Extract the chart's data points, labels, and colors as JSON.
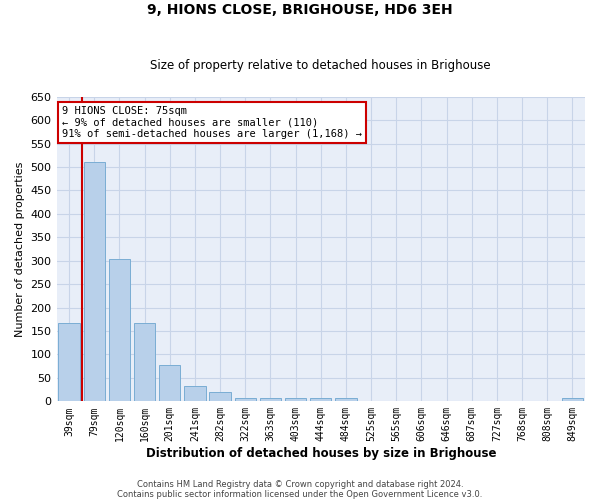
{
  "title": "9, HIONS CLOSE, BRIGHOUSE, HD6 3EH",
  "subtitle": "Size of property relative to detached houses in Brighouse",
  "xlabel": "Distribution of detached houses by size in Brighouse",
  "ylabel": "Number of detached properties",
  "categories": [
    "39sqm",
    "79sqm",
    "120sqm",
    "160sqm",
    "201sqm",
    "241sqm",
    "282sqm",
    "322sqm",
    "363sqm",
    "403sqm",
    "444sqm",
    "484sqm",
    "525sqm",
    "565sqm",
    "606sqm",
    "646sqm",
    "687sqm",
    "727sqm",
    "768sqm",
    "808sqm",
    "849sqm"
  ],
  "values": [
    168,
    510,
    303,
    168,
    78,
    32,
    20,
    8,
    8,
    8,
    8,
    8,
    0,
    0,
    0,
    0,
    0,
    0,
    0,
    0,
    8
  ],
  "bar_color": "#b8d0ea",
  "bar_edge_color": "#7aadd4",
  "vline_color": "#cc0000",
  "annotation_lines": [
    "9 HIONS CLOSE: 75sqm",
    "← 9% of detached houses are smaller (110)",
    "91% of semi-detached houses are larger (1,168) →"
  ],
  "annotation_box_color": "#cc0000",
  "annotation_box_fill": "#ffffff",
  "ylim": [
    0,
    650
  ],
  "yticks": [
    0,
    50,
    100,
    150,
    200,
    250,
    300,
    350,
    400,
    450,
    500,
    550,
    600,
    650
  ],
  "grid_color": "#c8d4e8",
  "background_color": "#e8eef8",
  "footer_line1": "Contains HM Land Registry data © Crown copyright and database right 2024.",
  "footer_line2": "Contains public sector information licensed under the Open Government Licence v3.0."
}
